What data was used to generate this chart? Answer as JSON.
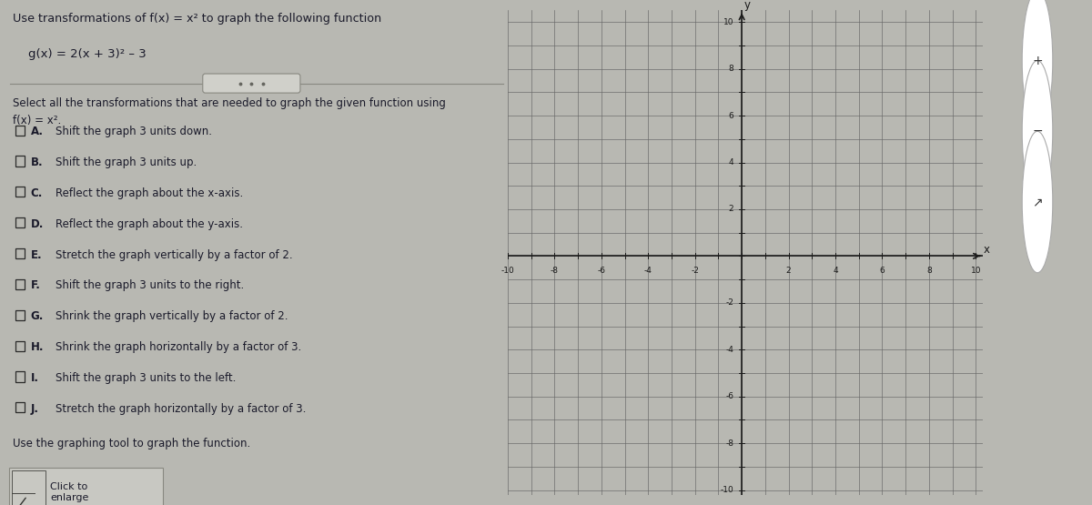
{
  "title_line1": "Use transformations of f(x) = x² to graph the following function",
  "function_label": "g(x) = 2(x + 3)² – 3",
  "select_text": "Select all the transformations that are needed to graph the given function using",
  "select_text2": "f(x) = x².",
  "options": [
    {
      "label": "A.",
      "text": "Shift the graph 3 units down."
    },
    {
      "label": "B.",
      "text": "Shift the graph 3 units up."
    },
    {
      "label": "C.",
      "text": "Reflect the graph about the x-axis."
    },
    {
      "label": "D.",
      "text": "Reflect the graph about the y-axis."
    },
    {
      "label": "E.",
      "text": "Stretch the graph vertically by a factor of 2."
    },
    {
      "label": "F.",
      "text": "Shift the graph 3 units to the right."
    },
    {
      "label": "G.",
      "text": "Shrink the graph vertically by a factor of 2."
    },
    {
      "label": "H.",
      "text": "Shrink the graph horizontally by a factor of 3."
    },
    {
      "label": "I.",
      "text": "Shift the graph 3 units to the left."
    },
    {
      "label": "J.",
      "text": "Stretch the graph horizontally by a factor of 3."
    }
  ],
  "use_tool_text": "Use the graphing tool to graph the function.",
  "click_to_text": "Click to\nenlarge",
  "bg_left_color": "#b8b8b2",
  "bg_right_color": "#d0d0cc",
  "graph_bg_color": "#d4d4d0",
  "far_right_color": "#e0e0dc",
  "grid_color": "#666666",
  "axis_color": "#1a1a1a",
  "text_color": "#1a1a2a",
  "checkbox_color": "#2a2a2a",
  "xlim": [
    -10,
    10
  ],
  "ylim": [
    -10,
    10
  ],
  "xticks": [
    -10,
    -8,
    -6,
    -4,
    -2,
    2,
    4,
    6,
    8,
    10
  ],
  "yticks": [
    -10,
    -8,
    -6,
    -4,
    -2,
    2,
    4,
    6,
    8,
    10
  ]
}
